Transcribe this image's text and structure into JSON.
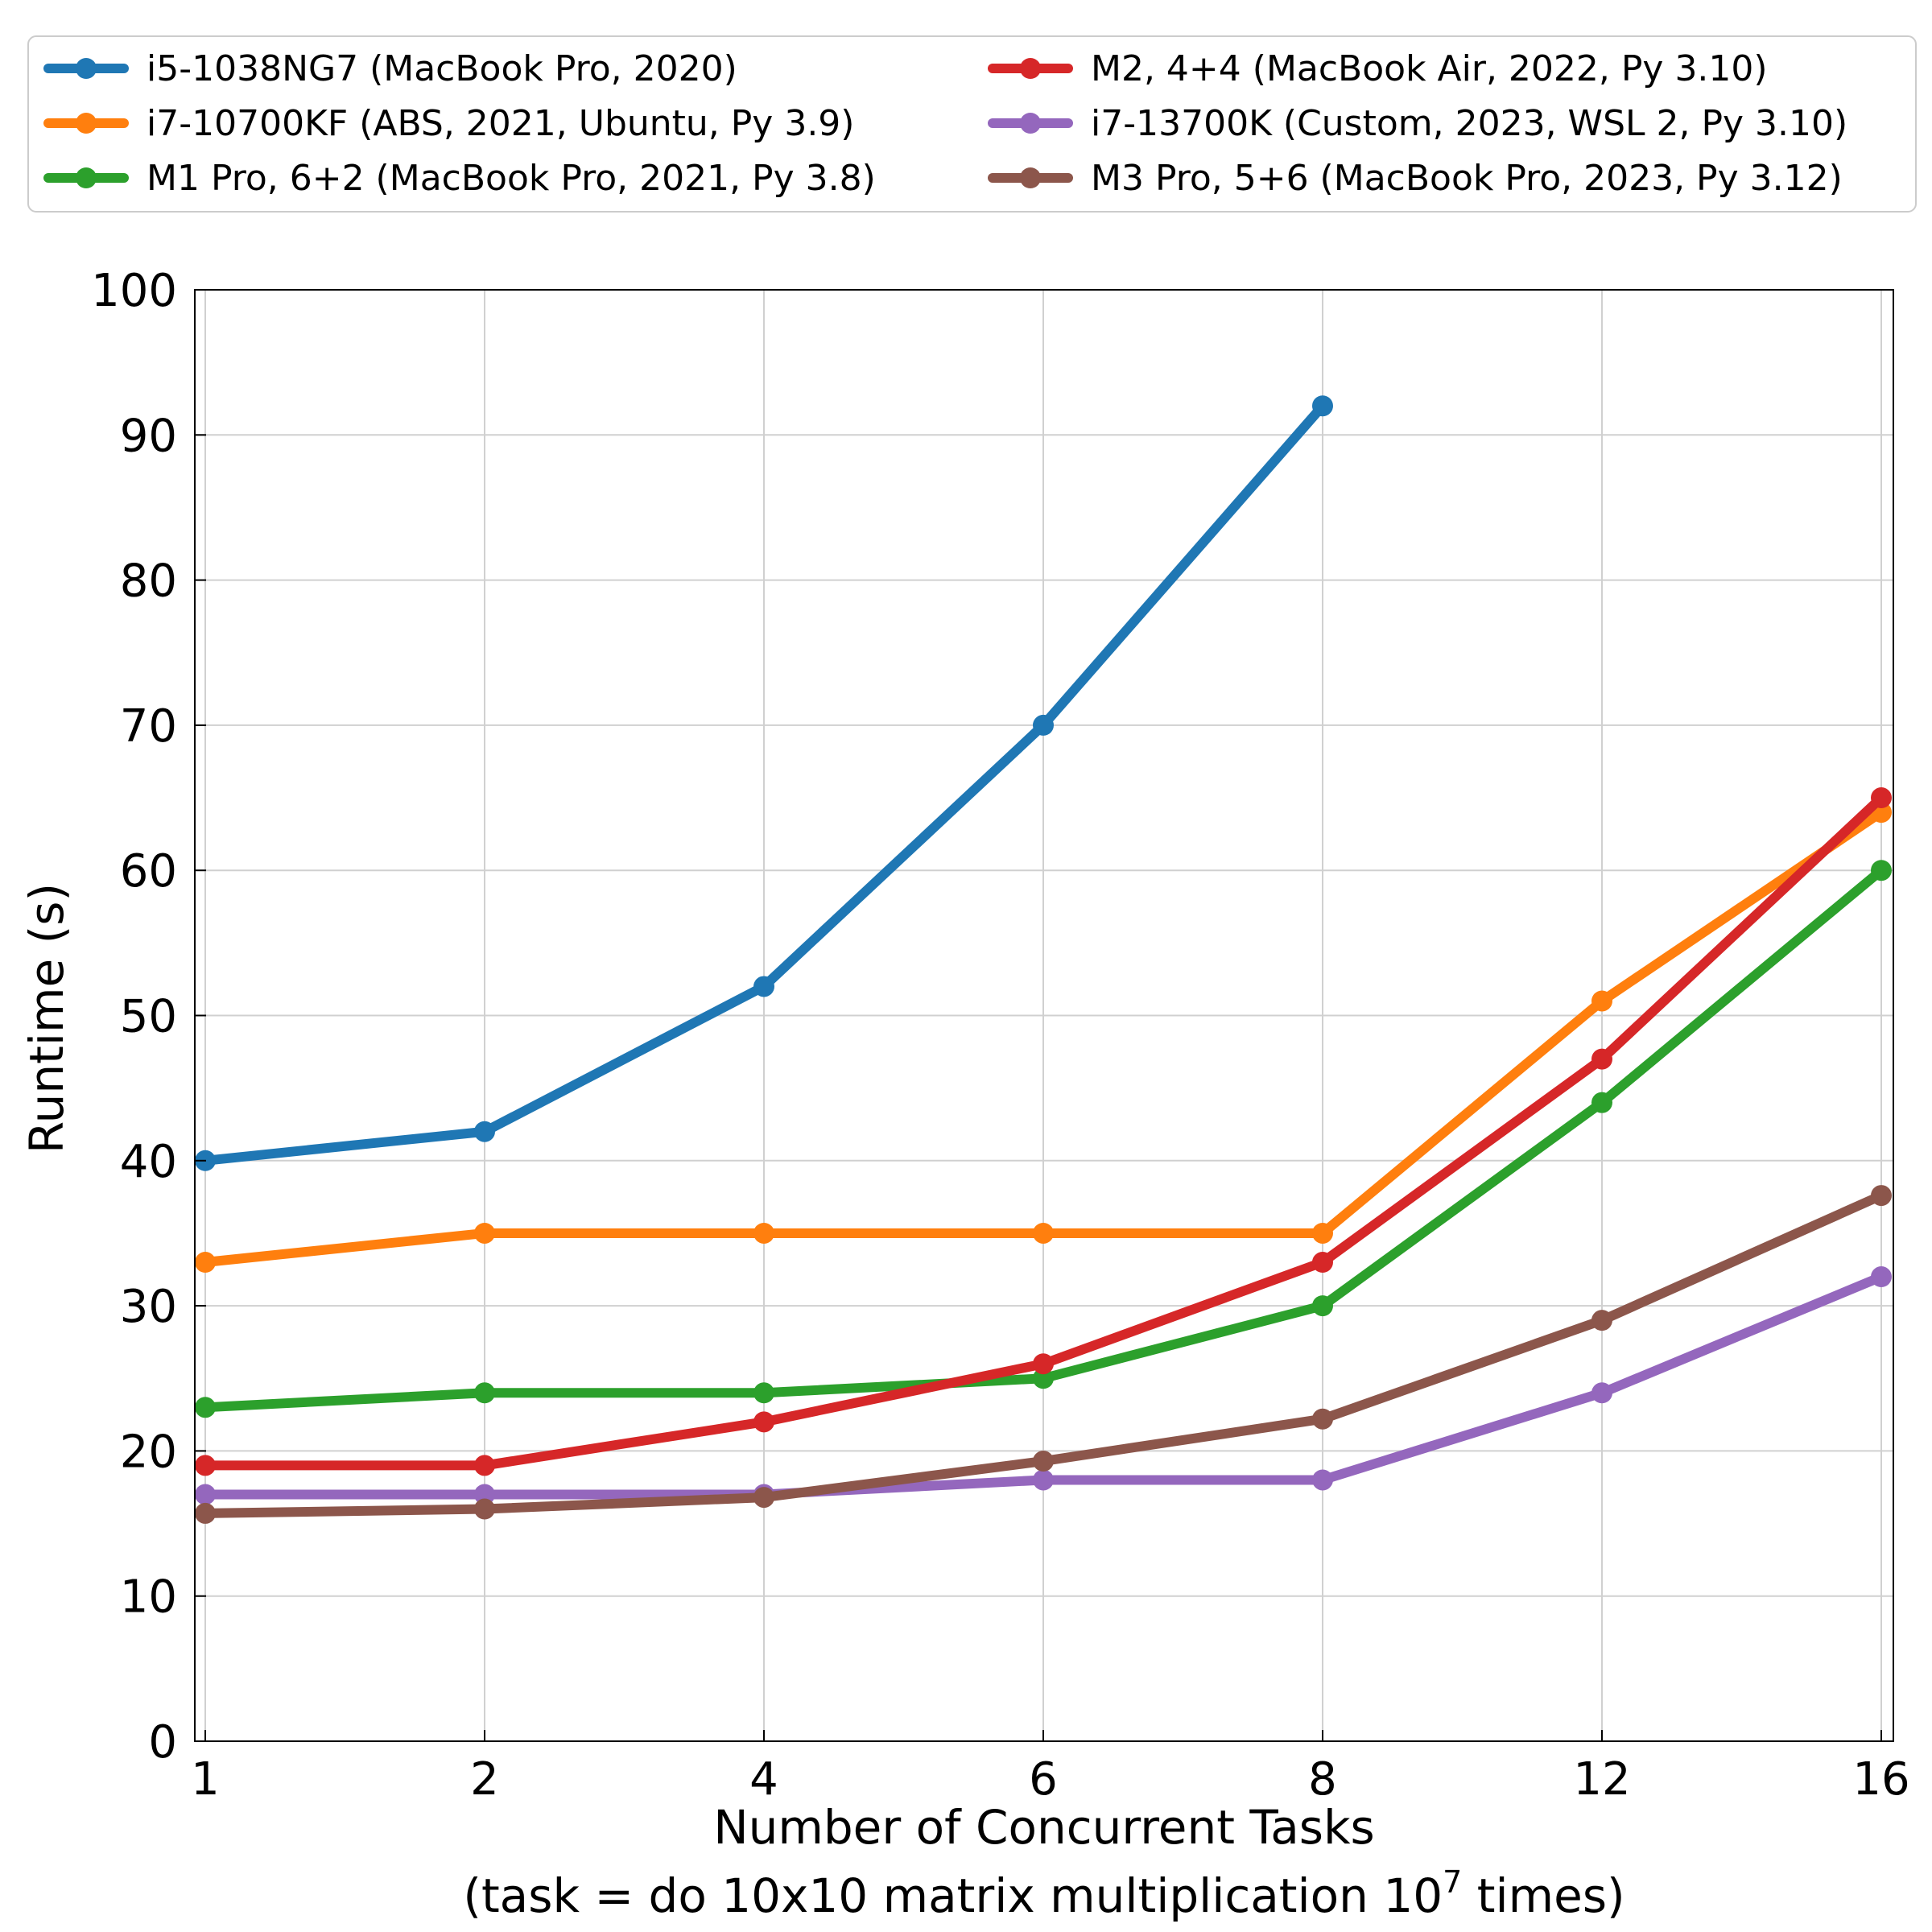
{
  "chart_data": {
    "type": "line",
    "x": [
      1,
      2,
      4,
      6,
      8,
      12,
      16
    ],
    "xticks": [
      "1",
      "2",
      "4",
      "6",
      "8",
      "12",
      "16"
    ],
    "yticks": [
      "0",
      "10",
      "20",
      "30",
      "40",
      "50",
      "60",
      "70",
      "80",
      "90",
      "100"
    ],
    "ylim": [
      0,
      100
    ],
    "xlabel": "Number of Concurrent Tasks",
    "xlabel2": {
      "prefix": "(task = do 10x10 matrix multiplication 10",
      "sup": "7",
      "suffix": " times)"
    },
    "ylabel": "Runtime (s)",
    "grid": true,
    "legend_position": "top",
    "series": [
      {
        "name": "i5-1038NG7 (MacBook Pro, 2020)",
        "color": "#1f77b4",
        "values": [
          40,
          42,
          52,
          70,
          92,
          null,
          null
        ]
      },
      {
        "name": "i7-10700KF (ABS, 2021, Ubuntu, Py 3.9)",
        "color": "#ff7f0e",
        "values": [
          33,
          35,
          35,
          35,
          35,
          51,
          64
        ]
      },
      {
        "name": "M1 Pro, 6+2 (MacBook Pro, 2021, Py 3.8)",
        "color": "#2ca02c",
        "values": [
          23,
          24,
          24,
          25,
          30,
          44,
          60
        ]
      },
      {
        "name": "M2, 4+4 (MacBook Air, 2022, Py 3.10)",
        "color": "#d62728",
        "values": [
          19,
          19,
          22,
          26,
          33,
          47,
          65
        ]
      },
      {
        "name": "i7-13700K (Custom, 2023, WSL 2, Py 3.10)",
        "color": "#9467bd",
        "values": [
          17,
          17,
          17,
          18,
          18,
          24,
          32
        ]
      },
      {
        "name": "M3 Pro, 5+6 (MacBook Pro, 2023, Py 3.12)",
        "color": "#8c564b",
        "values": [
          15.7,
          16,
          16.8,
          19.3,
          22.2,
          29,
          37.6
        ]
      }
    ]
  }
}
